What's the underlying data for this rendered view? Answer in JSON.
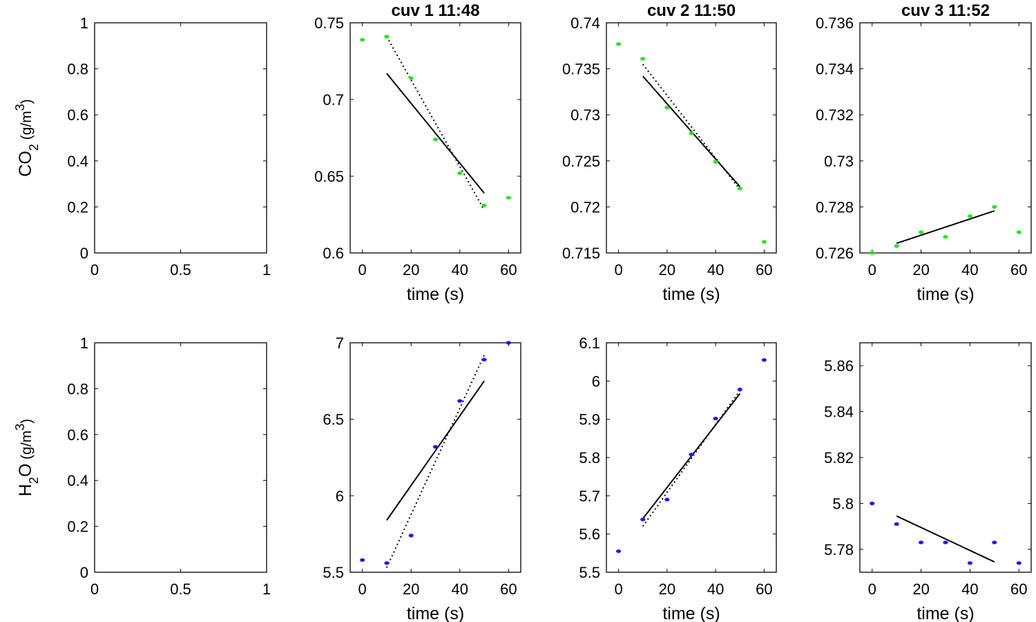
{
  "colors": {
    "co2_points": "#22e622",
    "h2o_points": "#1a1aff",
    "lines": "#000000"
  },
  "chart_data": [
    {
      "type": "scatter",
      "panel": "co2-empty",
      "title": "",
      "xlabel": "",
      "ylabel_main": "CO",
      "ylabel_sub": "2",
      "ylabel_unit": " (g/m",
      "ylabel_sup": "3",
      "ylabel_close": ")",
      "xlim": [
        0,
        1
      ],
      "ylim": [
        0,
        1
      ],
      "xticks": [
        0,
        0.5,
        1
      ],
      "xtick_labels": [
        "0",
        "0.5",
        "1"
      ],
      "yticks": [
        0,
        0.2,
        0.4,
        0.6,
        0.8,
        1
      ],
      "ytick_labels": [
        "0",
        "0.2",
        "0.4",
        "0.6",
        "0.8",
        "1"
      ],
      "points": [],
      "fit_solid": [],
      "fit_dotted": []
    },
    {
      "type": "scatter",
      "panel": "co2-cuv1",
      "title": "cuv 1 11:48",
      "xlabel": "time (s)",
      "xlim": [
        -5,
        65
      ],
      "ylim": [
        0.6,
        0.75
      ],
      "xticks": [
        0,
        20,
        40,
        60
      ],
      "xtick_labels": [
        "0",
        "20",
        "40",
        "60"
      ],
      "yticks": [
        0.6,
        0.65,
        0.7,
        0.75
      ],
      "ytick_labels": [
        "0.6",
        "0.65",
        "0.7",
        "0.75"
      ],
      "points": [
        [
          0,
          0.739
        ],
        [
          10,
          0.741
        ],
        [
          20,
          0.714
        ],
        [
          30,
          0.674
        ],
        [
          40,
          0.652
        ],
        [
          50,
          0.631
        ],
        [
          60,
          0.636
        ]
      ],
      "fit_solid": [
        [
          10,
          0.717
        ],
        [
          50,
          0.639
        ]
      ],
      "fit_dotted": [
        [
          10,
          0.741
        ],
        [
          50,
          0.628
        ]
      ]
    },
    {
      "type": "scatter",
      "panel": "co2-cuv2",
      "title": "cuv 2 11:50",
      "xlabel": "time (s)",
      "xlim": [
        -5,
        65
      ],
      "ylim": [
        0.715,
        0.74
      ],
      "xticks": [
        0,
        20,
        40,
        60
      ],
      "xtick_labels": [
        "0",
        "20",
        "40",
        "60"
      ],
      "yticks": [
        0.715,
        0.72,
        0.725,
        0.73,
        0.735,
        0.74
      ],
      "ytick_labels": [
        "0.715",
        "0.72",
        "0.725",
        "0.73",
        "0.735",
        "0.74"
      ],
      "points": [
        [
          0,
          0.7377
        ],
        [
          10,
          0.7361
        ],
        [
          20,
          0.7308
        ],
        [
          30,
          0.728
        ],
        [
          40,
          0.7249
        ],
        [
          50,
          0.722
        ],
        [
          60,
          0.7162
        ]
      ],
      "fit_solid": [
        [
          10,
          0.7342
        ],
        [
          50,
          0.7222
        ]
      ],
      "fit_dotted": [
        [
          10,
          0.7355
        ],
        [
          50,
          0.7219
        ]
      ]
    },
    {
      "type": "scatter",
      "panel": "co2-cuv3",
      "title": "cuv 3 11:52",
      "xlabel": "time (s)",
      "xlim": [
        -5,
        65
      ],
      "ylim": [
        0.726,
        0.736
      ],
      "xticks": [
        0,
        20,
        40,
        60
      ],
      "xtick_labels": [
        "0",
        "20",
        "40",
        "60"
      ],
      "yticks": [
        0.726,
        0.728,
        0.73,
        0.732,
        0.734,
        0.736
      ],
      "ytick_labels": [
        "0.726",
        "0.728",
        "0.73",
        "0.732",
        "0.734",
        "0.736"
      ],
      "points": [
        [
          0,
          0.726
        ],
        [
          10,
          0.7263
        ],
        [
          20,
          0.7269
        ],
        [
          30,
          0.7267
        ],
        [
          40,
          0.7276
        ],
        [
          50,
          0.728
        ],
        [
          60,
          0.7269
        ]
      ],
      "fit_solid": [
        [
          10,
          0.72642
        ],
        [
          50,
          0.72783
        ]
      ],
      "fit_dotted": []
    },
    {
      "type": "scatter",
      "panel": "h2o-empty",
      "title": "",
      "xlabel": "",
      "ylabel_main": "H",
      "ylabel_sub": "2",
      "ylabel_after": "O",
      "ylabel_unit": " (g/m",
      "ylabel_sup": "3",
      "ylabel_close": ")",
      "xlim": [
        0,
        1
      ],
      "ylim": [
        0,
        1
      ],
      "xticks": [
        0,
        0.5,
        1
      ],
      "xtick_labels": [
        "0",
        "0.5",
        "1"
      ],
      "yticks": [
        0,
        0.2,
        0.4,
        0.6,
        0.8,
        1
      ],
      "ytick_labels": [
        "0",
        "0.2",
        "0.4",
        "0.6",
        "0.8",
        "1"
      ],
      "points": [],
      "fit_solid": [],
      "fit_dotted": []
    },
    {
      "type": "scatter",
      "panel": "h2o-cuv1",
      "title": "",
      "xlabel": "time (s)",
      "xlim": [
        -5,
        65
      ],
      "ylim": [
        5.5,
        7
      ],
      "xticks": [
        0,
        20,
        40,
        60
      ],
      "xtick_labels": [
        "0",
        "20",
        "40",
        "60"
      ],
      "yticks": [
        5.5,
        6,
        6.5,
        7
      ],
      "ytick_labels": [
        "5.5",
        "6",
        "6.5",
        "7"
      ],
      "points": [
        [
          0,
          5.58
        ],
        [
          10,
          5.56
        ],
        [
          20,
          5.74
        ],
        [
          30,
          6.32
        ],
        [
          40,
          6.62
        ],
        [
          50,
          6.89
        ],
        [
          60,
          7.0
        ]
      ],
      "fit_solid": [
        [
          10,
          5.84
        ],
        [
          50,
          6.75
        ]
      ],
      "fit_dotted": [
        [
          10,
          5.53
        ],
        [
          50,
          6.92
        ]
      ]
    },
    {
      "type": "scatter",
      "panel": "h2o-cuv2",
      "title": "",
      "xlabel": "time (s)",
      "xlim": [
        -5,
        65
      ],
      "ylim": [
        5.5,
        6.1
      ],
      "xticks": [
        0,
        20,
        40,
        60
      ],
      "xtick_labels": [
        "0",
        "20",
        "40",
        "60"
      ],
      "yticks": [
        5.5,
        5.6,
        5.7,
        5.8,
        5.9,
        6,
        6.1
      ],
      "ytick_labels": [
        "5.5",
        "5.6",
        "5.7",
        "5.8",
        "5.9",
        "6",
        "6.1"
      ],
      "points": [
        [
          0,
          5.555
        ],
        [
          10,
          5.638
        ],
        [
          20,
          5.69
        ],
        [
          30,
          5.808
        ],
        [
          40,
          5.902
        ],
        [
          50,
          5.978
        ],
        [
          60,
          6.055
        ]
      ],
      "fit_solid": [
        [
          10,
          5.64
        ],
        [
          50,
          5.967
        ]
      ],
      "fit_dotted": [
        [
          10,
          5.62
        ],
        [
          50,
          5.975
        ]
      ]
    },
    {
      "type": "scatter",
      "panel": "h2o-cuv3",
      "title": "",
      "xlabel": "time (s)",
      "xlim": [
        -5,
        65
      ],
      "ylim": [
        5.77,
        5.87
      ],
      "xticks": [
        0,
        20,
        40,
        60
      ],
      "xtick_labels": [
        "0",
        "20",
        "40",
        "60"
      ],
      "yticks": [
        5.78,
        5.8,
        5.82,
        5.84,
        5.86
      ],
      "ytick_labels": [
        "5.78",
        "5.8",
        "5.82",
        "5.84",
        "5.86"
      ],
      "points": [
        [
          0,
          5.8
        ],
        [
          10,
          5.791
        ],
        [
          20,
          5.783
        ],
        [
          30,
          5.783
        ],
        [
          40,
          5.774
        ],
        [
          50,
          5.783
        ],
        [
          60,
          5.774
        ]
      ],
      "fit_solid": [
        [
          10,
          5.7945
        ],
        [
          50,
          5.7745
        ]
      ],
      "fit_dotted": []
    }
  ]
}
